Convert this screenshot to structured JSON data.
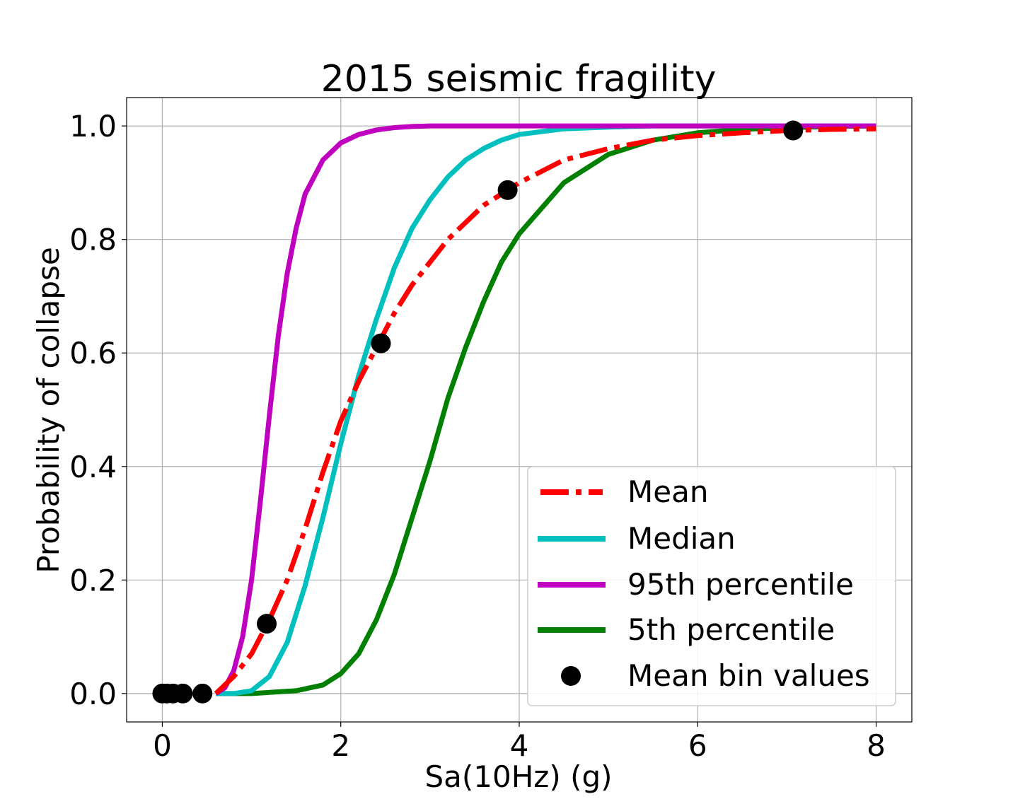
{
  "chart_data": {
    "type": "line",
    "title": "2015 seismic fragility",
    "xlabel": "Sa(10Hz) (g)",
    "ylabel": "Probability of collapse",
    "xlim": [
      -0.4,
      8.4
    ],
    "ylim": [
      -0.05,
      1.05
    ],
    "xticks": [
      0,
      2,
      4,
      6,
      8
    ],
    "xtick_labels": [
      "0",
      "2",
      "4",
      "6",
      "8"
    ],
    "yticks": [
      0.0,
      0.2,
      0.4,
      0.6,
      0.8,
      1.0
    ],
    "ytick_labels": [
      "0.0",
      "0.2",
      "0.4",
      "0.6",
      "0.8",
      "1.0"
    ],
    "grid": true,
    "legend_position": "lower-right",
    "series": [
      {
        "name": "Mean",
        "color": "#ff0000",
        "style": "dashdot",
        "x": [
          0.6,
          0.8,
          1.0,
          1.2,
          1.4,
          1.6,
          1.8,
          2.0,
          2.2,
          2.4,
          2.6,
          2.8,
          3.0,
          3.2,
          3.4,
          3.6,
          3.8,
          4.0,
          4.5,
          5.0,
          5.5,
          6.0,
          6.5,
          7.0,
          7.5,
          8.0
        ],
        "y": [
          0.0,
          0.03,
          0.07,
          0.13,
          0.2,
          0.29,
          0.39,
          0.48,
          0.55,
          0.61,
          0.67,
          0.72,
          0.76,
          0.8,
          0.83,
          0.86,
          0.88,
          0.9,
          0.94,
          0.96,
          0.975,
          0.983,
          0.988,
          0.992,
          0.994,
          0.995
        ]
      },
      {
        "name": "Median",
        "color": "#00bfbf",
        "style": "solid",
        "x": [
          0.6,
          0.8,
          1.0,
          1.2,
          1.4,
          1.6,
          1.8,
          2.0,
          2.2,
          2.4,
          2.6,
          2.8,
          3.0,
          3.2,
          3.4,
          3.6,
          3.8,
          4.0,
          4.5,
          5.0,
          5.5,
          6.0,
          7.0,
          8.0
        ],
        "y": [
          0.0,
          0.0,
          0.005,
          0.03,
          0.09,
          0.19,
          0.31,
          0.44,
          0.56,
          0.66,
          0.75,
          0.82,
          0.87,
          0.91,
          0.94,
          0.96,
          0.975,
          0.985,
          0.995,
          0.998,
          1.0,
          1.0,
          1.0,
          1.0
        ]
      },
      {
        "name": "95th percentile",
        "color": "#bf00bf",
        "style": "solid",
        "x": [
          0.6,
          0.7,
          0.8,
          0.9,
          1.0,
          1.1,
          1.2,
          1.3,
          1.4,
          1.5,
          1.6,
          1.8,
          2.0,
          2.2,
          2.4,
          2.6,
          2.8,
          3.0,
          3.5,
          4.0,
          5.0,
          6.0,
          7.0,
          8.0
        ],
        "y": [
          0.0,
          0.01,
          0.04,
          0.1,
          0.2,
          0.34,
          0.49,
          0.63,
          0.74,
          0.82,
          0.88,
          0.94,
          0.97,
          0.985,
          0.993,
          0.997,
          0.999,
          1.0,
          1.0,
          1.0,
          1.0,
          1.0,
          1.0,
          1.0
        ]
      },
      {
        "name": "5th percentile",
        "color": "#008000",
        "style": "solid",
        "x": [
          0.6,
          1.0,
          1.5,
          1.8,
          2.0,
          2.2,
          2.4,
          2.6,
          2.8,
          3.0,
          3.2,
          3.4,
          3.6,
          3.8,
          4.0,
          4.5,
          5.0,
          5.5,
          6.0,
          6.5,
          7.0,
          7.5,
          8.0
        ],
        "y": [
          0.0,
          0.0,
          0.005,
          0.015,
          0.035,
          0.07,
          0.13,
          0.21,
          0.31,
          0.41,
          0.52,
          0.61,
          0.69,
          0.76,
          0.81,
          0.9,
          0.95,
          0.975,
          0.988,
          0.994,
          0.997,
          0.999,
          1.0
        ]
      }
    ],
    "points": {
      "name": "Mean bin values",
      "color": "#000000",
      "x": [
        0.0,
        0.05,
        0.12,
        0.23,
        0.45,
        1.17,
        2.45,
        3.87,
        7.07
      ],
      "y": [
        0.0,
        0.0,
        0.0,
        0.0,
        0.0,
        0.123,
        0.617,
        0.887,
        0.992
      ]
    }
  }
}
